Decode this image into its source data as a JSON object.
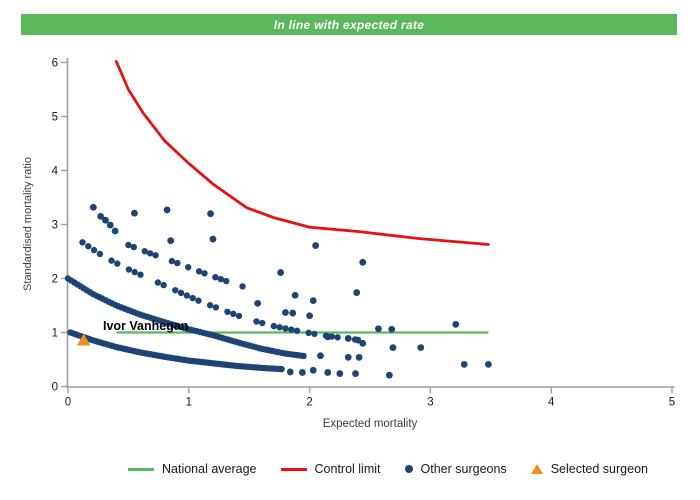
{
  "banner": {
    "text": "In line with expected rate",
    "background": "#5cb85c",
    "text_color": "#ffffff"
  },
  "chart_data": {
    "type": "scatter",
    "title": "In line with expected rate",
    "xlabel": "Expected mortality",
    "ylabel": "Standardised mortality ratio",
    "xlim": [
      0,
      5
    ],
    "ylim": [
      0,
      6
    ],
    "x_ticks": [
      0,
      1,
      2,
      3,
      4,
      5
    ],
    "y_ticks": [
      0,
      1,
      2,
      3,
      4,
      5,
      6
    ],
    "grid": false,
    "legend_position": "bottom",
    "axis_color": "#a0a0a0",
    "national_average": {
      "y": 1.0,
      "x_start": 0.4,
      "x_end": 3.48,
      "color": "#5cb85c"
    },
    "control_limit": {
      "color": "#e61212",
      "points": [
        [
          0.4,
          6.02
        ],
        [
          0.5,
          5.5
        ],
        [
          0.62,
          5.07
        ],
        [
          0.8,
          4.55
        ],
        [
          1.0,
          4.13
        ],
        [
          1.2,
          3.75
        ],
        [
          1.48,
          3.31
        ],
        [
          1.7,
          3.13
        ],
        [
          2.0,
          2.95
        ],
        [
          2.4,
          2.87
        ],
        [
          2.9,
          2.74
        ],
        [
          3.48,
          2.63
        ]
      ]
    },
    "other_surgeons": {
      "color": "#1e4476",
      "bands": [
        {
          "name": "band-1",
          "radius": 3.2,
          "step": 0.023,
          "pattern": [
            1
          ],
          "points": [
            [
              0.02,
              1.0
            ],
            [
              0.2,
              0.86
            ],
            [
              0.4,
              0.73
            ],
            [
              0.6,
              0.63
            ],
            [
              0.8,
              0.55
            ],
            [
              1.0,
              0.48
            ],
            [
              1.2,
              0.43
            ],
            [
              1.4,
              0.38
            ],
            [
              1.6,
              0.345
            ],
            [
              1.78,
              0.32
            ]
          ]
        },
        {
          "name": "band-2",
          "radius": 3.2,
          "step": 0.026,
          "pattern": [
            1
          ],
          "points": [
            [
              0.0,
              2.0
            ],
            [
              0.2,
              1.72
            ],
            [
              0.4,
              1.5
            ],
            [
              0.6,
              1.33
            ],
            [
              0.8,
              1.19
            ],
            [
              1.0,
              1.06
            ],
            [
              1.2,
              0.95
            ],
            [
              1.4,
              0.82
            ],
            [
              1.6,
              0.7
            ],
            [
              1.8,
              0.61
            ],
            [
              1.97,
              0.56
            ]
          ]
        },
        {
          "name": "band-3",
          "radius": 3.2,
          "step": 0.048,
          "pattern": [
            1,
            1,
            1,
            1,
            0,
            1,
            1,
            0,
            1,
            1,
            1,
            0,
            0,
            1,
            1,
            0,
            1
          ],
          "points": [
            [
              0.12,
              2.67
            ],
            [
              0.3,
              2.4
            ],
            [
              0.5,
              2.17
            ],
            [
              0.7,
              1.97
            ],
            [
              0.9,
              1.77
            ],
            [
              1.1,
              1.57
            ],
            [
              1.3,
              1.4
            ],
            [
              1.5,
              1.24
            ],
            [
              1.7,
              1.12
            ],
            [
              1.9,
              1.03
            ],
            [
              2.1,
              0.95
            ],
            [
              2.3,
              0.89
            ],
            [
              2.42,
              0.86
            ]
          ]
        },
        {
          "name": "band-4",
          "radius": 3.2,
          "step": 0.045,
          "pattern": [
            1,
            1,
            0,
            1,
            1,
            1,
            0,
            0,
            1,
            1,
            0,
            1,
            0
          ],
          "points": [
            [
              0.5,
              2.62
            ],
            [
              0.7,
              2.45
            ],
            [
              0.9,
              2.29
            ],
            [
              1.1,
              2.12
            ],
            [
              1.3,
              1.96
            ],
            [
              1.45,
              1.85
            ]
          ]
        }
      ],
      "points": [
        [
          0.21,
          3.32
        ],
        [
          0.27,
          3.15
        ],
        [
          0.31,
          3.08
        ],
        [
          0.35,
          2.99
        ],
        [
          0.39,
          2.88
        ],
        [
          0.55,
          3.21
        ],
        [
          0.82,
          3.27
        ],
        [
          1.18,
          3.2
        ],
        [
          0.85,
          2.7
        ],
        [
          1.2,
          2.73
        ],
        [
          2.05,
          2.61
        ],
        [
          2.44,
          2.3
        ],
        [
          1.76,
          2.11
        ],
        [
          2.39,
          1.74
        ],
        [
          1.88,
          1.69
        ],
        [
          2.03,
          1.59
        ],
        [
          1.57,
          1.54
        ],
        [
          1.8,
          1.37
        ],
        [
          1.86,
          1.36
        ],
        [
          2.0,
          1.31
        ],
        [
          2.57,
          1.07
        ],
        [
          2.68,
          1.06
        ],
        [
          3.21,
          1.15
        ],
        [
          2.15,
          0.92
        ],
        [
          2.32,
          0.89
        ],
        [
          2.4,
          0.86
        ],
        [
          2.44,
          0.8
        ],
        [
          2.69,
          0.72
        ],
        [
          2.92,
          0.72
        ],
        [
          2.09,
          0.57
        ],
        [
          2.32,
          0.54
        ],
        [
          2.41,
          0.54
        ],
        [
          1.84,
          0.27
        ],
        [
          1.94,
          0.26
        ],
        [
          2.03,
          0.3
        ],
        [
          2.15,
          0.26
        ],
        [
          2.25,
          0.24
        ],
        [
          2.38,
          0.24
        ],
        [
          2.66,
          0.21
        ],
        [
          3.28,
          0.41
        ],
        [
          3.48,
          0.41
        ]
      ]
    },
    "selected_surgeon": {
      "label": "Ivor Vanhegan",
      "x": 0.13,
      "y": 0.86,
      "color": "#f28a1e",
      "label_color": "#000000"
    }
  },
  "legend": [
    {
      "label": "National average",
      "swatch": "line",
      "color": "#5cb85c"
    },
    {
      "label": "Control limit",
      "swatch": "line",
      "color": "#e61212"
    },
    {
      "label": "Other surgeons",
      "swatch": "dot",
      "color": "#1e4476"
    },
    {
      "label": "Selected surgeon",
      "swatch": "triangle",
      "color": "#f28a1e"
    }
  ]
}
